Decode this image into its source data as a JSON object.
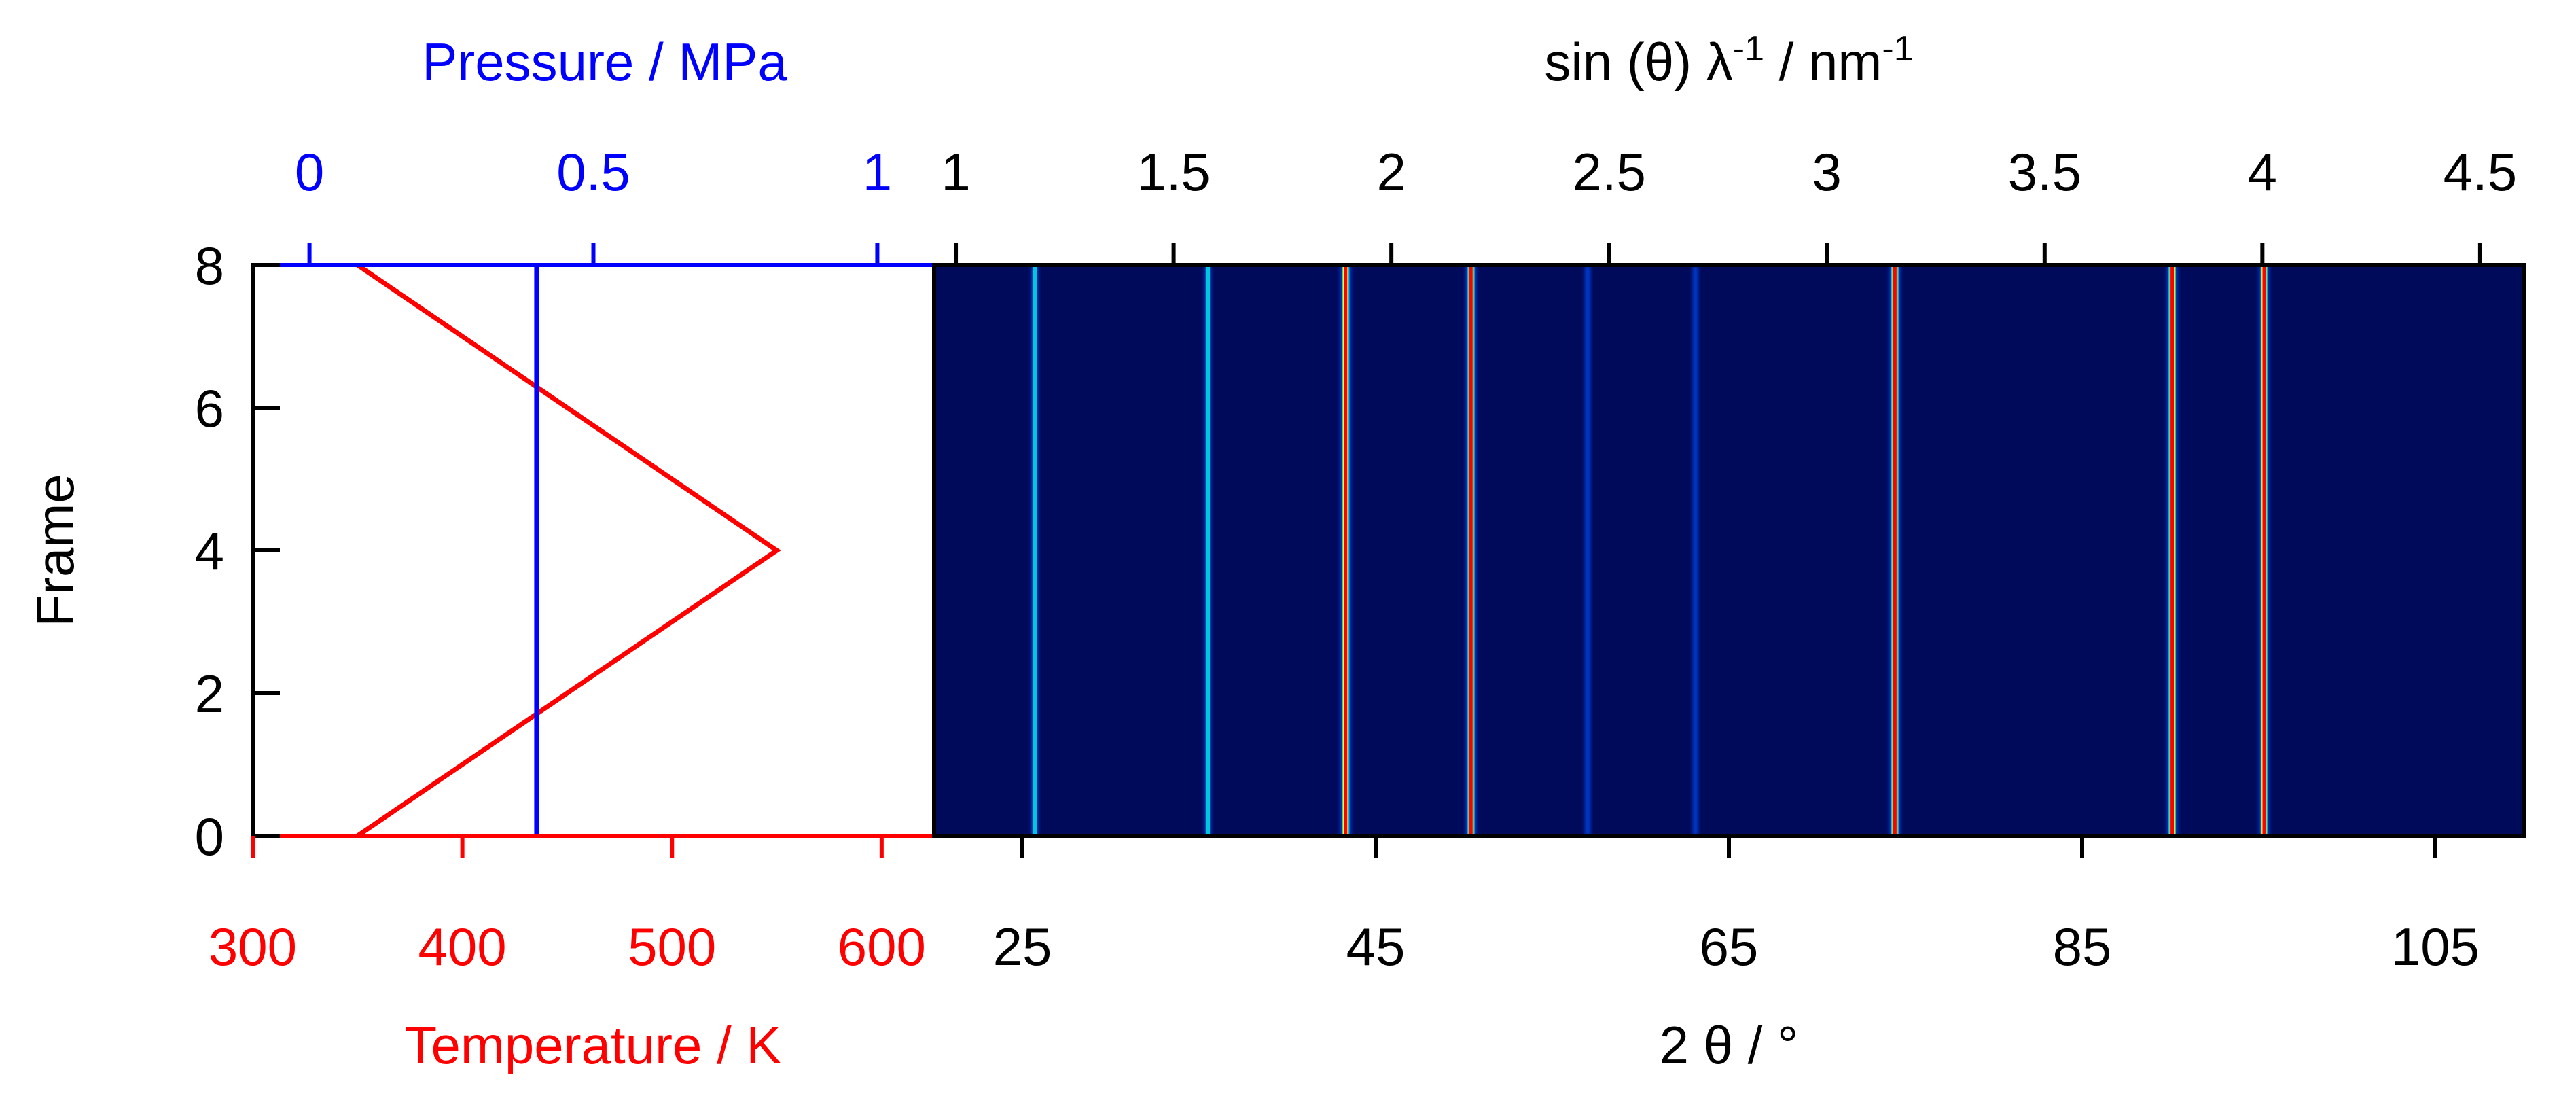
{
  "colors": {
    "temperature": "#ff0000",
    "pressure": "#0000ff",
    "text": "#000000",
    "heatmap_background": "#000a5a"
  },
  "chart_data": [
    {
      "type": "line",
      "ylabel": "Frame",
      "ylim": [
        0,
        8
      ],
      "yticks": [
        0,
        2,
        4,
        6,
        8
      ],
      "x_bottom": {
        "label": "Temperature / K",
        "range": [
          300,
          625
        ],
        "ticks": [
          300,
          400,
          500,
          600
        ],
        "color": "#ff0000"
      },
      "x_top": {
        "label": "Pressure / MPa",
        "range": [
          -0.1,
          1.1
        ],
        "ticks": [
          0,
          0.5,
          1
        ],
        "color": "#0000ff"
      },
      "series": [
        {
          "axis": "bottom",
          "color": "#ff0000",
          "points": [
            [
              350,
              0
            ],
            [
              550,
              4
            ],
            [
              350,
              8
            ]
          ]
        },
        {
          "axis": "top",
          "color": "#0000ff",
          "points": [
            [
              0.4,
              0
            ],
            [
              0.4,
              8
            ]
          ]
        }
      ],
      "grid": false
    },
    {
      "type": "heatmap",
      "ylabel": "Frame",
      "ylim": [
        0,
        8
      ],
      "x_bottom": {
        "label": "2 θ / °",
        "range": [
          20,
          110
        ],
        "ticks": [
          25,
          45,
          65,
          85,
          105
        ]
      },
      "x_top": {
        "label_base": "sin (θ) λ",
        "label_exp1": "-1",
        "label_mid": " / nm",
        "label_exp2": "-1",
        "range": [
          0.95,
          4.6
        ],
        "ticks": [
          1,
          1.5,
          2,
          2.5,
          3,
          3.5,
          4,
          4.5
        ],
        "tick_labels": [
          "1",
          "1.5",
          "2",
          "2.5",
          "3",
          "3.5",
          "4",
          "4.5"
        ]
      },
      "peaks": [
        {
          "two_theta": 25.7,
          "intensity": 0.35
        },
        {
          "two_theta": 35.5,
          "intensity": 0.3
        },
        {
          "two_theta": 43.3,
          "intensity": 1.0
        },
        {
          "two_theta": 50.4,
          "intensity": 0.9
        },
        {
          "two_theta": 57.0,
          "intensity": 0.2
        },
        {
          "two_theta": 63.1,
          "intensity": 0.15
        },
        {
          "two_theta": 74.4,
          "intensity": 0.95
        },
        {
          "two_theta": 90.1,
          "intensity": 0.95
        },
        {
          "two_theta": 95.3,
          "intensity": 0.85
        }
      ],
      "colormap": [
        "#000a5a",
        "#0050ff",
        "#00e0e0",
        "#ffff00",
        "#ff0000"
      ],
      "grid": false
    }
  ]
}
